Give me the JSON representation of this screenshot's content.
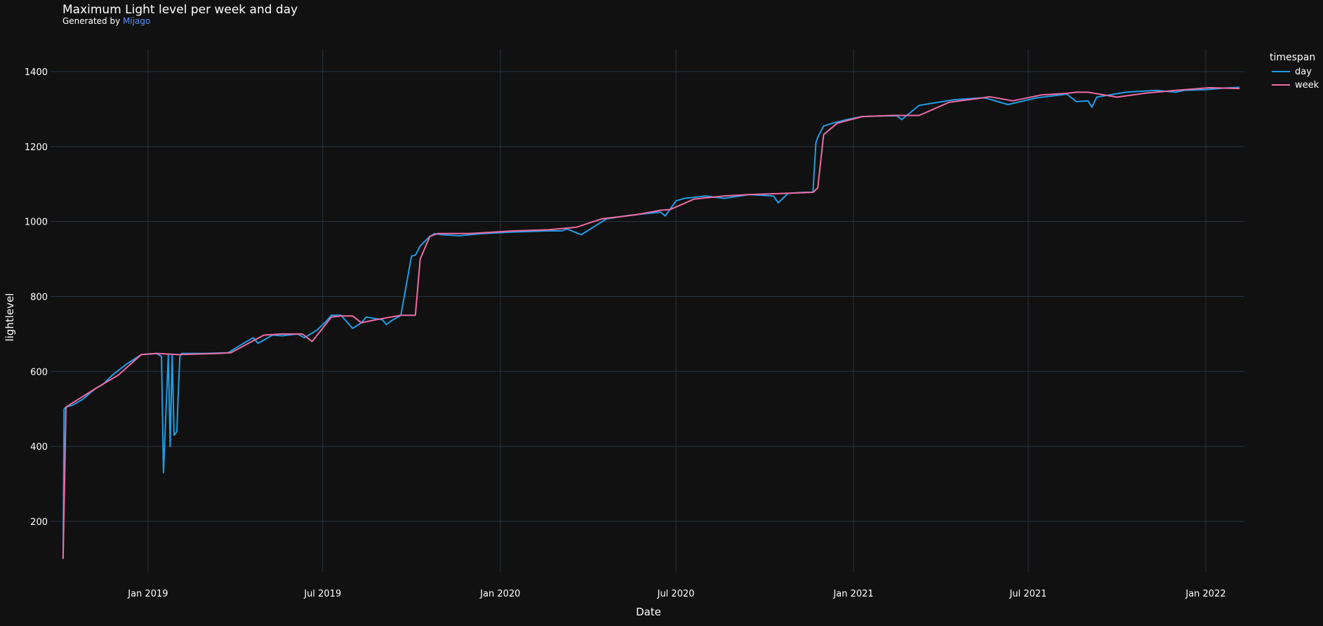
{
  "header": {
    "title": "Maximum Light level per week and day",
    "subtitle_prefix": "Generated by ",
    "subtitle_link": "Mijago"
  },
  "colors": {
    "background": "#111111",
    "grid": "#283442",
    "day": "#1f9de6",
    "week": "#ee6ca3",
    "link": "#5b8ff9"
  },
  "chart_data": {
    "type": "line",
    "title": "Maximum Light level per week and day",
    "xlabel": "Date",
    "ylabel": "lightlevel",
    "x_ticks": [
      "2019-01-01",
      "2019-07-01",
      "2020-01-01",
      "2020-07-01",
      "2021-01-01",
      "2021-07-01",
      "2022-01-01"
    ],
    "x_tick_labels": [
      "Jan 2019",
      "Jul 2019",
      "Jan 2020",
      "Jul 2020",
      "Jan 2021",
      "Jul 2021",
      "Jan 2022"
    ],
    "y_ticks": [
      200,
      400,
      600,
      800,
      1000,
      1200,
      1400
    ],
    "xlim": [
      "2018-09-22",
      "2022-02-10"
    ],
    "ylim": [
      65,
      1460
    ],
    "grid": true,
    "legend": {
      "title": "timespan",
      "position": "top-right"
    },
    "series": [
      {
        "name": "day",
        "x": [
          "2018-10-05",
          "2018-10-06",
          "2018-10-08",
          "2018-10-15",
          "2018-10-25",
          "2018-11-01",
          "2018-11-03",
          "2018-11-08",
          "2018-11-15",
          "2018-11-25",
          "2018-12-10",
          "2018-12-25",
          "2019-01-10",
          "2019-01-15",
          "2019-01-17",
          "2019-01-22",
          "2019-01-24",
          "2019-01-26",
          "2019-01-28",
          "2019-01-31",
          "2019-02-01",
          "2019-02-03",
          "2019-02-05",
          "2019-02-07",
          "2019-02-09",
          "2019-02-12",
          "2019-03-01",
          "2019-03-25",
          "2019-04-10",
          "2019-04-20",
          "2019-04-25",
          "2019-05-10",
          "2019-05-20",
          "2019-06-05",
          "2019-06-12",
          "2019-06-25",
          "2019-07-05",
          "2019-07-10",
          "2019-07-20",
          "2019-08-01",
          "2019-08-10",
          "2019-08-15",
          "2019-09-01",
          "2019-09-05",
          "2019-09-10",
          "2019-09-20",
          "2019-10-01",
          "2019-10-05",
          "2019-10-10",
          "2019-10-20",
          "2019-10-25",
          "2019-11-01",
          "2019-11-20",
          "2019-12-01",
          "2019-12-15",
          "2020-01-15",
          "2020-02-20",
          "2020-03-05",
          "2020-03-10",
          "2020-03-25",
          "2020-04-20",
          "2020-05-15",
          "2020-06-15",
          "2020-06-20",
          "2020-07-01",
          "2020-07-10",
          "2020-08-01",
          "2020-08-20",
          "2020-09-15",
          "2020-10-10",
          "2020-10-15",
          "2020-10-25",
          "2020-11-10",
          "2020-11-20",
          "2020-11-23",
          "2020-11-25",
          "2020-12-01",
          "2020-12-10",
          "2020-12-25",
          "2021-01-10",
          "2021-02-01",
          "2021-02-15",
          "2021-02-20",
          "2021-03-10",
          "2021-04-15",
          "2021-05-15",
          "2021-05-20",
          "2021-06-10",
          "2021-07-10",
          "2021-08-10",
          "2021-08-20",
          "2021-09-01",
          "2021-09-05",
          "2021-09-10",
          "2021-10-10",
          "2021-11-10",
          "2021-12-01",
          "2021-12-10",
          "2022-01-01",
          "2022-01-20",
          "2022-02-05"
        ],
        "y": [
          100,
          500,
          505,
          510,
          525,
          540,
          545,
          555,
          565,
          590,
          620,
          645,
          648,
          640,
          330,
          645,
          400,
          645,
          430,
          440,
          520,
          640,
          648,
          648,
          648,
          648,
          648,
          650,
          675,
          690,
          675,
          697,
          695,
          700,
          690,
          710,
          735,
          750,
          750,
          715,
          730,
          745,
          738,
          725,
          735,
          750,
          908,
          910,
          935,
          960,
          968,
          965,
          962,
          965,
          968,
          972,
          975,
          975,
          980,
          965,
          1007,
          1017,
          1025,
          1015,
          1055,
          1062,
          1068,
          1062,
          1072,
          1068,
          1050,
          1075,
          1078,
          1078,
          1210,
          1225,
          1255,
          1262,
          1272,
          1280,
          1282,
          1282,
          1272,
          1310,
          1325,
          1330,
          1328,
          1312,
          1330,
          1340,
          1320,
          1322,
          1305,
          1332,
          1345,
          1350,
          1345,
          1350,
          1352,
          1356,
          1358
        ]
      },
      {
        "name": "week",
        "x": [
          "2018-10-05",
          "2018-10-08",
          "2018-11-08",
          "2018-12-01",
          "2018-12-25",
          "2019-01-10",
          "2019-02-01",
          "2019-03-15",
          "2019-03-28",
          "2019-04-15",
          "2019-05-01",
          "2019-05-20",
          "2019-06-10",
          "2019-06-20",
          "2019-07-10",
          "2019-07-20",
          "2019-08-01",
          "2019-08-10",
          "2019-08-25",
          "2019-09-20",
          "2019-10-05",
          "2019-10-10",
          "2019-10-20",
          "2019-10-28",
          "2019-11-10",
          "2019-12-01",
          "2020-01-15",
          "2020-02-20",
          "2020-03-20",
          "2020-04-15",
          "2020-05-20",
          "2020-06-15",
          "2020-06-25",
          "2020-07-20",
          "2020-08-20",
          "2020-09-15",
          "2020-10-20",
          "2020-11-20",
          "2020-11-25",
          "2020-12-01",
          "2020-12-15",
          "2021-01-10",
          "2021-02-10",
          "2021-03-10",
          "2021-04-10",
          "2021-05-15",
          "2021-05-22",
          "2021-06-15",
          "2021-07-15",
          "2021-08-10",
          "2021-08-20",
          "2021-09-01",
          "2021-10-01",
          "2021-11-01",
          "2021-12-01",
          "2022-01-05",
          "2022-02-05"
        ],
        "y": [
          100,
          505,
          555,
          590,
          645,
          648,
          645,
          648,
          650,
          675,
          697,
          700,
          700,
          680,
          745,
          748,
          748,
          730,
          738,
          750,
          750,
          900,
          960,
          968,
          968,
          968,
          975,
          978,
          985,
          1007,
          1018,
          1030,
          1032,
          1060,
          1068,
          1072,
          1075,
          1078,
          1090,
          1232,
          1262,
          1280,
          1283,
          1283,
          1318,
          1330,
          1333,
          1322,
          1338,
          1342,
          1345,
          1345,
          1332,
          1343,
          1350,
          1357,
          1355
        ]
      }
    ]
  }
}
